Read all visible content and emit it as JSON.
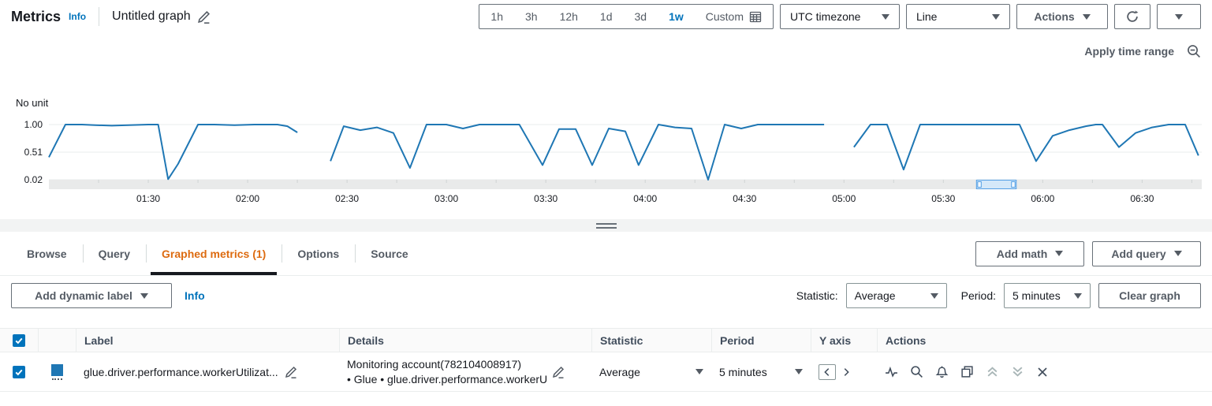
{
  "colors": {
    "accent_blue": "#0073bb",
    "line_blue": "#1f77b4",
    "tab_orange": "#dd6b10",
    "text_dark": "#16191f",
    "text_gray": "#545b64",
    "disabled_icon": "#aab7b8"
  },
  "header": {
    "title": "Metrics",
    "info": "Info",
    "graph_title": "Untitled graph",
    "time_ranges": {
      "0": "1h",
      "1": "3h",
      "2": "12h",
      "3": "1d",
      "4": "3d",
      "5": "1w"
    },
    "selected_range": "1w",
    "custom_label": "Custom",
    "timezone_value": "UTC timezone",
    "chart_type_value": "Line",
    "actions_label": "Actions"
  },
  "graph": {
    "apply_time_range": "Apply time range"
  },
  "chart_data": {
    "type": "line",
    "title": "Untitled graph",
    "ylabel": "No unit",
    "ylim": [
      0.02,
      1.0
    ],
    "yticks": [
      {
        "v": 1.0,
        "label": "1.00"
      },
      {
        "v": 0.51,
        "label": "0.51"
      },
      {
        "v": 0.02,
        "label": "0.02"
      }
    ],
    "x_domain_minutes_after_0100": [
      0,
      348
    ],
    "xticks": [
      {
        "t": 30,
        "label": "01:30"
      },
      {
        "t": 60,
        "label": "02:00"
      },
      {
        "t": 90,
        "label": "02:30"
      },
      {
        "t": 120,
        "label": "03:00"
      },
      {
        "t": 150,
        "label": "03:30"
      },
      {
        "t": 180,
        "label": "04:00"
      },
      {
        "t": 210,
        "label": "04:30"
      },
      {
        "t": 240,
        "label": "05:00"
      },
      {
        "t": 270,
        "label": "05:30"
      },
      {
        "t": 300,
        "label": "06:00"
      },
      {
        "t": 330,
        "label": "06:30"
      }
    ],
    "grid": true,
    "legend": "hidden",
    "brush_t": [
      280,
      292
    ],
    "series": [
      {
        "name": "glue.driver.performance.workerUtilization",
        "color": "#1f77b4",
        "segments": [
          [
            [
              0,
              0.42
            ],
            [
              5,
              1
            ],
            [
              10,
              1
            ],
            [
              14,
              0.99
            ],
            [
              19,
              0.98
            ],
            [
              24,
              0.99
            ],
            [
              30,
              1
            ],
            [
              33,
              1
            ],
            [
              36,
              0.03
            ],
            [
              39,
              0.3
            ],
            [
              45,
              1
            ],
            [
              50,
              1
            ],
            [
              56,
              0.99
            ],
            [
              62,
              1
            ],
            [
              69,
              1
            ],
            [
              72,
              0.97
            ],
            [
              75,
              0.86
            ]
          ],
          [
            [
              85,
              0.35
            ],
            [
              89,
              0.97
            ],
            [
              94,
              0.9
            ],
            [
              99,
              0.95
            ],
            [
              104,
              0.85
            ],
            [
              109,
              0.23
            ],
            [
              114,
              1
            ],
            [
              120,
              1
            ],
            [
              125,
              0.93
            ],
            [
              130,
              1
            ],
            [
              136,
              1
            ],
            [
              142,
              1
            ],
            [
              149,
              0.28
            ],
            [
              154,
              0.92
            ],
            [
              159,
              0.92
            ],
            [
              164,
              0.28
            ],
            [
              169,
              0.93
            ],
            [
              174,
              0.88
            ],
            [
              178,
              0.28
            ],
            [
              184,
              1
            ],
            [
              189,
              0.95
            ],
            [
              194,
              0.93
            ],
            [
              199,
              0.02
            ],
            [
              204,
              1
            ],
            [
              209,
              0.93
            ],
            [
              214,
              1
            ],
            [
              220,
              1
            ],
            [
              227,
              1
            ],
            [
              234,
              1
            ]
          ],
          [
            [
              243,
              0.6
            ],
            [
              248,
              1
            ],
            [
              253,
              1
            ],
            [
              258,
              0.2
            ],
            [
              263,
              1
            ],
            [
              270,
              1
            ],
            [
              280,
              1
            ],
            [
              287,
              1
            ],
            [
              293,
              1
            ],
            [
              298,
              0.35
            ],
            [
              303,
              0.8
            ],
            [
              308,
              0.9
            ],
            [
              313,
              0.97
            ],
            [
              316,
              1
            ],
            [
              318,
              1
            ],
            [
              323,
              0.6
            ],
            [
              328,
              0.85
            ],
            [
              333,
              0.95
            ],
            [
              338,
              1
            ],
            [
              343,
              1
            ],
            [
              347,
              0.45
            ]
          ]
        ]
      }
    ]
  },
  "tabs": {
    "0": {
      "label": "Browse"
    },
    "1": {
      "label": "Query"
    },
    "2": {
      "label": "Graphed metrics (1)"
    },
    "3": {
      "label": "Options"
    },
    "4": {
      "label": "Source"
    }
  },
  "toolbar": {
    "add_math": "Add math",
    "add_query": "Add query"
  },
  "controls": {
    "add_dynamic_label": "Add dynamic label",
    "info": "Info",
    "statistic_label": "Statistic:",
    "statistic_value": "Average",
    "period_label": "Period:",
    "period_value": "5 minutes",
    "clear_graph": "Clear graph"
  },
  "table": {
    "columns": {
      "label": "Label",
      "details": "Details",
      "statistic": "Statistic",
      "period": "Period",
      "yaxis": "Y axis",
      "actions": "Actions"
    },
    "row": {
      "label": "glue.driver.performance.workerUtilizat...",
      "details_line1": "Monitoring account(782104008917)",
      "details_line2": "• Glue • glue.driver.performance.workerU",
      "statistic": "Average",
      "period": "5 minutes",
      "swatch_color": "#1f77b4",
      "checked": true
    }
  },
  "icons": {
    "edit": "pencil",
    "calendar": "calendar-grid",
    "zoom_out": "magnifier-minus",
    "refresh": "circular-arrow",
    "caret": "triangle-down",
    "drag_handle": "double-bar",
    "pulse": "heartbeat-line",
    "search": "magnifier",
    "alarm": "bell",
    "duplicate": "copy-squares",
    "move_up": "double-chevron-up",
    "move_down": "double-chevron-down",
    "remove": "x-cross",
    "yaxis_left": "chevron-left",
    "yaxis_right": "chevron-right",
    "checkmark": "check"
  }
}
